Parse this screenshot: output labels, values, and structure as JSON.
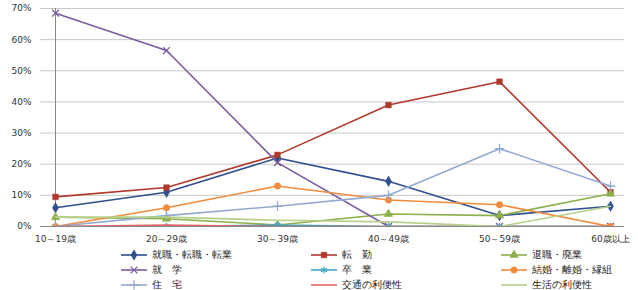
{
  "chart_data": {
    "type": "line",
    "categories": [
      "10～19歳",
      "20～29歳",
      "30～39歳",
      "40～49歳",
      "50～59歳",
      "60歳以上"
    ],
    "series": [
      {
        "name": "就職・転職・転業",
        "color": "#2f4f8f",
        "marker": "diamond",
        "values": [
          6,
          11,
          22,
          14.5,
          3.5,
          6.5
        ]
      },
      {
        "name": "転　勤",
        "color": "#b0392c",
        "marker": "square",
        "values": [
          9.5,
          12.5,
          23,
          39,
          46.5,
          11
        ]
      },
      {
        "name": "退職・廃業",
        "color": "#8cb04a",
        "marker": "triangle",
        "values": [
          3,
          2.5,
          0.5,
          4,
          3.5,
          10.5
        ]
      },
      {
        "name": "就　学",
        "color": "#7a5c9e",
        "marker": "times",
        "values": [
          68.5,
          56.5,
          20.5,
          0,
          0,
          0
        ]
      },
      {
        "name": "卒　業",
        "color": "#3fa6c2",
        "marker": "asterisk",
        "values": [
          0,
          0,
          0.5,
          0,
          0,
          0
        ]
      },
      {
        "name": "結婚・離婚・縁組",
        "color": "#f08c3c",
        "marker": "circle",
        "values": [
          0,
          6,
          13,
          8.5,
          7,
          0
        ]
      },
      {
        "name": "住　宅",
        "color": "#93a9cf",
        "marker": "plus",
        "values": [
          0,
          3.5,
          6.5,
          10,
          25,
          13
        ]
      },
      {
        "name": "交通の利便性",
        "color": "#e06666",
        "marker": "none",
        "values": [
          0,
          0.5,
          0,
          0,
          0,
          0
        ]
      },
      {
        "name": "生活の利便性",
        "color": "#b6d08a",
        "marker": "none",
        "values": [
          3,
          3,
          2,
          1.5,
          0,
          6.5
        ]
      }
    ],
    "ylim": [
      0,
      70
    ],
    "yticks": [
      {
        "value": 0,
        "label": "0%"
      },
      {
        "value": 10,
        "label": "10%"
      },
      {
        "value": 20,
        "label": "20%"
      },
      {
        "value": 30,
        "label": "30%"
      },
      {
        "value": 40,
        "label": "40%"
      },
      {
        "value": 50,
        "label": "50%"
      },
      {
        "value": 60,
        "label": "60%"
      },
      {
        "value": 70,
        "label": "70%"
      }
    ],
    "grid": true,
    "legend": "bottom"
  }
}
